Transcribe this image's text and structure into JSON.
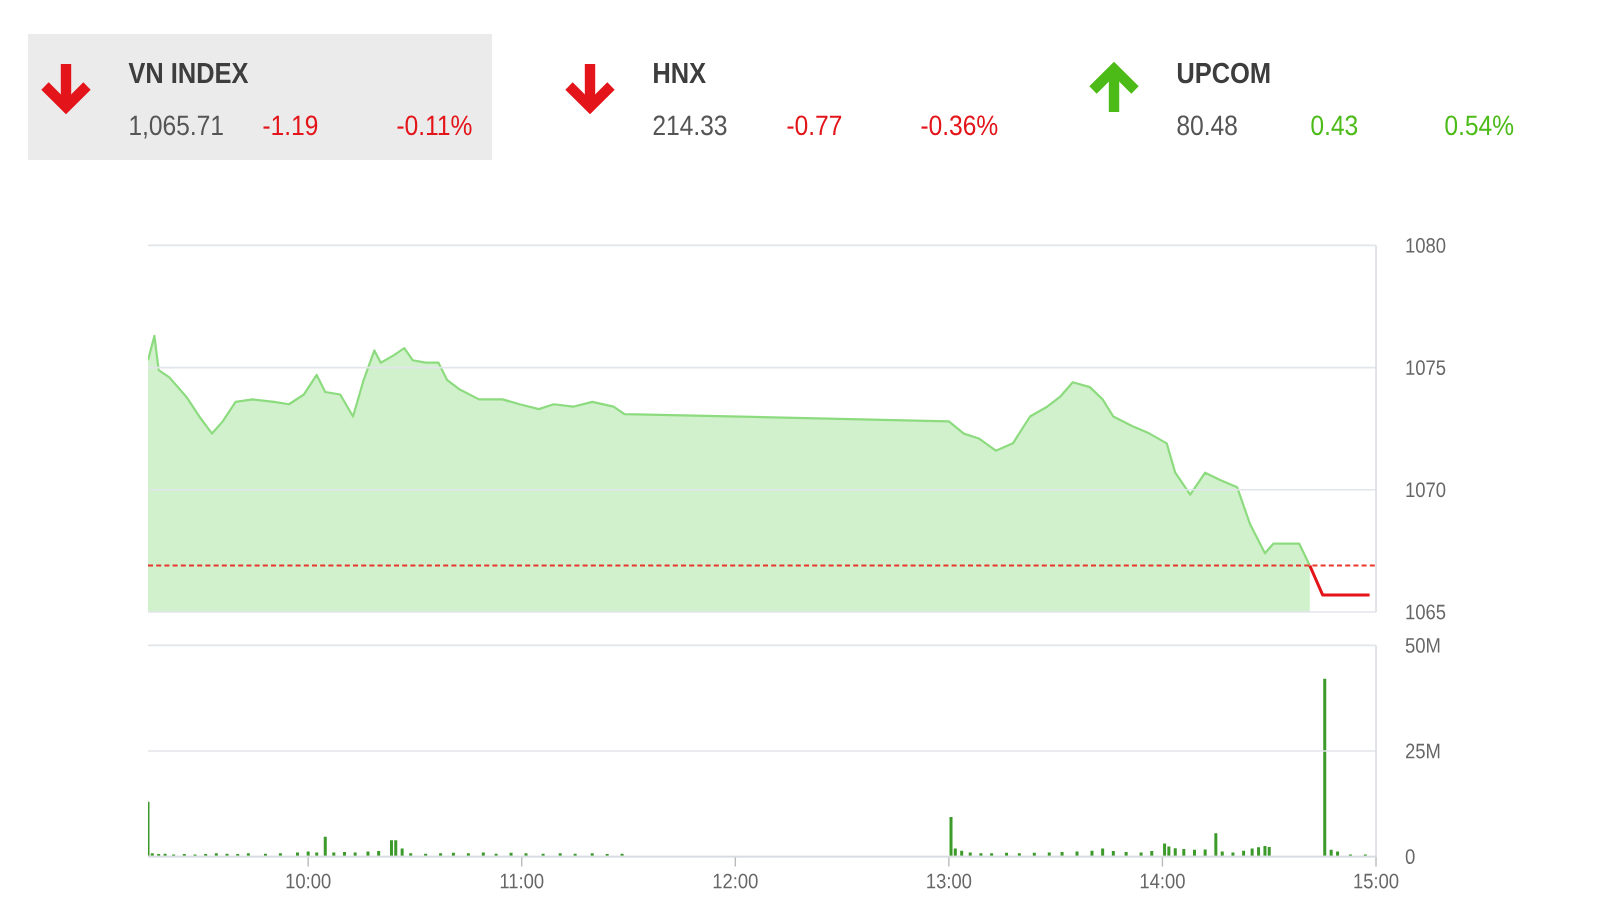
{
  "chart_data": [
    {
      "type": "other",
      "title": "VN INDEX",
      "values": [
        1065.71,
        -1.19,
        -0.11
      ],
      "value_labels": [
        "1,065.71",
        "-1.19",
        "-0.11%"
      ],
      "colors": [
        "#555555",
        "#e3151a",
        "#e3151a"
      ]
    },
    {
      "type": "other",
      "title": "HNX",
      "values": [
        214.33,
        -0.77,
        -0.36
      ],
      "value_labels": [
        "214.33",
        "-0.77",
        "-0.36%"
      ],
      "colors": [
        "#555555",
        "#e3151a",
        "#e3151a"
      ]
    },
    {
      "type": "other",
      "title": "UPCOM",
      "values": [
        80.48,
        0.43,
        0.54
      ],
      "value_labels": [
        "80.48",
        "0.43",
        "0.54%"
      ],
      "colors": [
        "#555555",
        "#4cbb17",
        "#4cbb17"
      ]
    },
    {
      "type": "area",
      "xlim": [
        9.25,
        15
      ],
      "ylim": [
        1065,
        1080
      ],
      "yticks": [
        1065,
        1070,
        1075,
        1080
      ],
      "grid": "y",
      "tick_labels": "y",
      "ref_lines": [
        {
          "axis": "y",
          "value": 1066.9,
          "color": "#e8382d",
          "line_style": "dashed"
        }
      ],
      "series": [
        {
          "color": "#8ddb7f",
          "x": [
            9.25,
            9.28,
            9.3,
            9.35,
            9.43,
            9.49,
            9.55,
            9.6,
            9.66,
            9.74,
            9.84,
            9.91,
            9.98,
            10.04,
            10.08,
            10.15,
            10.21,
            10.26,
            10.31,
            10.34,
            10.4,
            10.45,
            10.49,
            10.55,
            10.61,
            10.65,
            10.71,
            10.8,
            10.91,
            10.99,
            11.08,
            11.15,
            11.24,
            11.33,
            11.43,
            11.48,
            13.0,
            13.07,
            13.14,
            13.22,
            13.3,
            13.38,
            13.46,
            13.52,
            13.58,
            13.66,
            13.72,
            13.77,
            13.86,
            13.94,
            14.02,
            14.06,
            14.13,
            14.2,
            14.27,
            14.35,
            14.41,
            14.48,
            14.52,
            14.64,
            14.69
          ],
          "values": [
            1075.3,
            1076.3,
            1074.9,
            1074.6,
            1073.8,
            1073.0,
            1072.3,
            1072.8,
            1073.6,
            1073.7,
            1073.6,
            1073.5,
            1073.9,
            1074.7,
            1074.0,
            1073.9,
            1073.0,
            1074.5,
            1075.7,
            1075.2,
            1075.5,
            1075.8,
            1075.3,
            1075.2,
            1075.2,
            1074.5,
            1074.1,
            1073.7,
            1073.7,
            1073.5,
            1073.3,
            1073.5,
            1073.4,
            1073.6,
            1073.4,
            1073.1,
            1072.8,
            1072.3,
            1072.1,
            1071.6,
            1071.9,
            1073.0,
            1073.4,
            1073.8,
            1074.4,
            1074.2,
            1073.7,
            1073.0,
            1072.6,
            1072.3,
            1071.9,
            1070.7,
            1069.8,
            1070.7,
            1070.4,
            1070.1,
            1068.6,
            1067.4,
            1067.8,
            1067.8,
            1066.9
          ]
        },
        {
          "type": "line",
          "color": "#e3151a",
          "x": [
            14.69,
            14.75,
            14.97
          ],
          "values": [
            1066.9,
            1065.7,
            1065.7
          ]
        }
      ]
    },
    {
      "type": "bar",
      "xlim": [
        9.25,
        15
      ],
      "ylim": [
        0,
        50
      ],
      "xticks": [
        {
          "value": 10,
          "label": "10:00"
        },
        {
          "value": 11,
          "label": "11:00"
        },
        {
          "value": 12,
          "label": "12:00"
        },
        {
          "value": 13,
          "label": "13:00"
        },
        {
          "value": 14,
          "label": "14:00"
        },
        {
          "value": 15,
          "label": "15:00"
        }
      ],
      "yticks": [
        0,
        {
          "value": 25,
          "label": "25M"
        },
        {
          "value": 50,
          "label": "50M"
        }
      ],
      "grid": "y",
      "color": "#3c9a2a",
      "x": [
        9.25,
        9.27,
        9.3,
        9.33,
        9.37,
        9.42,
        9.47,
        9.52,
        9.57,
        9.62,
        9.67,
        9.72,
        9.8,
        9.87,
        9.95,
        10.0,
        10.04,
        10.08,
        10.12,
        10.17,
        10.22,
        10.28,
        10.33,
        10.39,
        10.41,
        10.44,
        10.48,
        10.55,
        10.62,
        10.68,
        10.75,
        10.82,
        10.88,
        10.95,
        11.02,
        11.1,
        11.18,
        11.25,
        11.33,
        11.4,
        11.47,
        13.01,
        13.03,
        13.06,
        13.1,
        13.15,
        13.2,
        13.27,
        13.33,
        13.4,
        13.47,
        13.53,
        13.6,
        13.67,
        13.72,
        13.77,
        13.83,
        13.9,
        13.95,
        14.01,
        14.03,
        14.06,
        14.1,
        14.15,
        14.2,
        14.25,
        14.28,
        14.33,
        14.38,
        14.42,
        14.45,
        14.48,
        14.5,
        14.76,
        14.79,
        14.82,
        14.88,
        14.95
      ],
      "values": [
        13.0,
        0.8,
        0.6,
        0.7,
        0.5,
        0.6,
        0.5,
        0.6,
        0.8,
        0.7,
        0.6,
        0.8,
        0.7,
        0.8,
        1.0,
        1.2,
        1.0,
        4.7,
        1.0,
        1.1,
        1.0,
        1.2,
        1.3,
        3.9,
        3.9,
        1.9,
        0.8,
        0.7,
        0.8,
        0.9,
        0.8,
        1.0,
        0.7,
        0.9,
        0.8,
        0.7,
        0.8,
        0.7,
        0.8,
        0.6,
        0.7,
        9.4,
        1.9,
        1.4,
        1.0,
        0.8,
        0.8,
        0.9,
        0.8,
        0.9,
        1.0,
        1.1,
        1.2,
        1.4,
        1.9,
        1.3,
        1.1,
        1.0,
        1.3,
        3.1,
        2.4,
        2.0,
        1.8,
        1.6,
        1.7,
        5.5,
        1.2,
        1.0,
        1.4,
        1.9,
        2.2,
        2.5,
        2.3,
        42.1,
        1.6,
        1.2,
        0.5,
        0.5
      ]
    }
  ]
}
